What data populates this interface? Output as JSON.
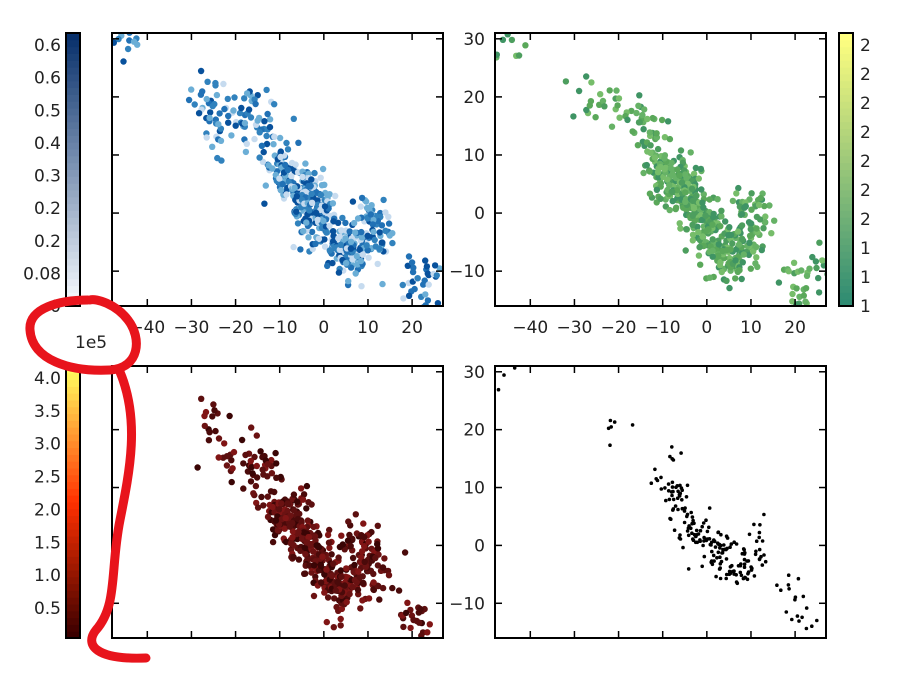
{
  "annotation": {
    "color": "#e8141c",
    "description_note": ""
  },
  "chart_data": [
    {
      "type": "scatter",
      "panel": "top-left",
      "x": [
        -45,
        -27,
        -26,
        -24,
        -22,
        -18,
        -16,
        -14,
        -12,
        -10,
        -8,
        -6,
        -5,
        -4,
        -3,
        -2,
        0,
        2,
        4,
        6,
        8,
        10,
        12,
        14,
        20,
        22,
        24
      ],
      "y": [
        30,
        20,
        19,
        14,
        16,
        16,
        18,
        15,
        12,
        8,
        6,
        5,
        4,
        2,
        0,
        0,
        -2,
        -4,
        -6,
        -8,
        -6,
        0,
        -3,
        -6,
        -12,
        -14,
        -10
      ],
      "xticks": [
        "-40",
        "-30",
        "-20",
        "-10",
        "0",
        "10",
        "20"
      ],
      "xlim": [
        -48,
        27
      ],
      "ylim": [
        -16,
        31
      ],
      "cmap": "Blues",
      "colorbar": {
        "ticks": [
          "0.6",
          "0.6",
          "0.5",
          "0.4",
          "0.3",
          "0.2",
          "0.2",
          "0.08",
          "0"
        ],
        "colors": [
          "#f7fbff",
          "#08306b"
        ]
      },
      "point_colors": [
        "#08519c",
        "#3182bd",
        "#6baed6",
        "#c6dbef",
        "#2171b5"
      ]
    },
    {
      "type": "scatter",
      "panel": "top-right",
      "x": [
        -45,
        -27,
        -20,
        -16,
        -14,
        -12,
        -10,
        -8,
        -6,
        -5,
        -4,
        -2,
        0,
        2,
        4,
        6,
        8,
        10,
        12,
        20,
        22,
        24
      ],
      "y": [
        30,
        20,
        18,
        16,
        14,
        12,
        8,
        6,
        5,
        4,
        2,
        0,
        -2,
        -4,
        -6,
        -8,
        -6,
        0,
        -3,
        -12,
        -14,
        -10
      ],
      "xticks": [
        "-40",
        "-30",
        "-20",
        "-10",
        "0",
        "10",
        "20"
      ],
      "yticks": [
        "30",
        "20",
        "10",
        "0",
        "-10"
      ],
      "xlim": [
        -48,
        27
      ],
      "ylim": [
        -16,
        31
      ],
      "cmap": "summer",
      "colorbar": {
        "ticks": [
          "2",
          "2",
          "2",
          "2",
          "2",
          "2",
          "2",
          "1",
          "1",
          "1"
        ],
        "colors": [
          "#2e8b72",
          "#ffff80"
        ]
      },
      "point_colors": [
        "#66b266",
        "#5aa85a",
        "#4d9e5e",
        "#76bd6a",
        "#3f9464"
      ]
    },
    {
      "type": "scatter",
      "panel": "bottom-left",
      "x": [
        -26,
        -22,
        -18,
        -16,
        -14,
        -12,
        -10,
        -8,
        -6,
        -5,
        -4,
        -2,
        0,
        2,
        4,
        6,
        8,
        10,
        12,
        20,
        22
      ],
      "y": [
        20,
        16,
        16,
        14,
        12,
        8,
        6,
        5,
        4,
        2,
        0,
        -2,
        -4,
        -6,
        -8,
        -6,
        0,
        -3,
        -6,
        -12,
        -14
      ],
      "xlim": [
        -48,
        27
      ],
      "ylim": [
        -16,
        31
      ],
      "cmap": "hot",
      "colorbar": {
        "ticks": [
          "4.0",
          "3.5",
          "3.0",
          "2.5",
          "2.0",
          "1.5",
          "1.0",
          "0.5"
        ],
        "exponent": "1e5",
        "colors": [
          "#3b0000",
          "#ff3000",
          "#ffff60"
        ]
      },
      "point_colors": [
        "#4a0a0a",
        "#5c0f0f",
        "#6b1212",
        "#3a0505",
        "#801515"
      ]
    },
    {
      "type": "scatter",
      "panel": "bottom-right",
      "x": [
        -44,
        -20,
        -10,
        -8,
        -6,
        -4,
        -2,
        0,
        2,
        4,
        6,
        8,
        10,
        12,
        18,
        20,
        22
      ],
      "y": [
        30,
        20,
        14,
        10,
        8,
        4,
        2,
        0,
        -1,
        -2,
        -3,
        -4,
        -2,
        2,
        -6,
        -10,
        -14
      ],
      "yticks": [
        "30",
        "20",
        "10",
        "0",
        "-10"
      ],
      "xlim": [
        -48,
        27
      ],
      "ylim": [
        -16,
        31
      ],
      "point_colors": [
        "#000000"
      ]
    }
  ]
}
